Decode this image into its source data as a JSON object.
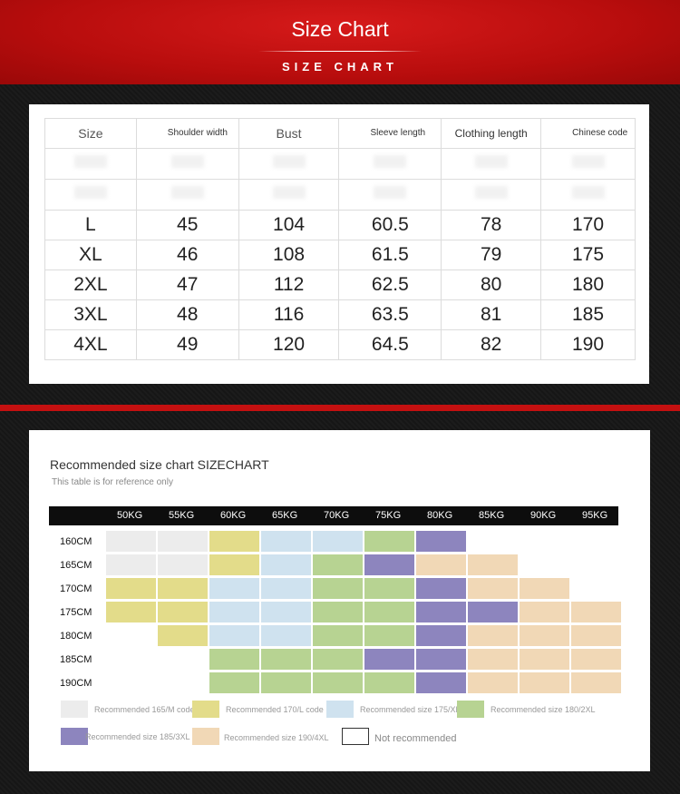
{
  "header": {
    "title": "Size Chart",
    "subtitle": "SIZE CHART"
  },
  "size_table": {
    "headers": [
      "Size",
      "Shoulder width",
      "Bust",
      "Sleeve length",
      "Clothing length",
      "Chinese code"
    ],
    "rows": [
      [
        "L",
        "45",
        "104",
        "60.5",
        "78",
        "170"
      ],
      [
        "XL",
        "46",
        "108",
        "61.5",
        "79",
        "175"
      ],
      [
        "2XL",
        "47",
        "112",
        "62.5",
        "80",
        "180"
      ],
      [
        "3XL",
        "48",
        "116",
        "63.5",
        "81",
        "185"
      ],
      [
        "4XL",
        "49",
        "120",
        "64.5",
        "82",
        "190"
      ]
    ]
  },
  "recommend": {
    "title": "Recommended size chart SIZECHART",
    "subtitle": "This table is for reference only",
    "weights": [
      "50KG",
      "55KG",
      "60KG",
      "65KG",
      "70KG",
      "75KG",
      "80KG",
      "85KG",
      "90KG",
      "95KG"
    ],
    "heights": [
      "160CM",
      "165CM",
      "170CM",
      "175CM",
      "180CM",
      "185CM",
      "190CM"
    ],
    "grid": [
      [
        "M",
        "M",
        "L",
        "XL",
        "XL",
        "2XL",
        "3XL",
        "",
        "",
        ""
      ],
      [
        "M",
        "M",
        "L",
        "XL",
        "2XL",
        "3XL",
        "4XL",
        "4XL",
        "",
        ""
      ],
      [
        "L",
        "L",
        "XL",
        "XL",
        "2XL",
        "2XL",
        "3XL",
        "4XL",
        "4XL",
        ""
      ],
      [
        "L",
        "L",
        "XL",
        "XL",
        "2XL",
        "2XL",
        "3XL",
        "3XL",
        "4XL",
        "4XL"
      ],
      [
        "",
        "L",
        "XL",
        "XL",
        "2XL",
        "2XL",
        "3XL",
        "4XL",
        "4XL",
        "4XL"
      ],
      [
        "",
        "",
        "2XL",
        "2XL",
        "2XL",
        "3XL",
        "3XL",
        "4XL",
        "4XL",
        "4XL"
      ],
      [
        "",
        "",
        "2XL",
        "2XL",
        "2XL",
        "2XL",
        "3XL",
        "4XL",
        "4XL",
        "4XL"
      ]
    ],
    "colors": {
      "M": "#ececec",
      "L": "#e3dc8a",
      "XL": "#cfe2ef",
      "2XL": "#b7d392",
      "3XL": "#8d85be",
      "4XL": "#f1d8b6",
      "none": "#ffffff"
    },
    "legend": [
      {
        "key": "M",
        "label": "Recommended 165/M code"
      },
      {
        "key": "L",
        "label": "Recommended 170/L code"
      },
      {
        "key": "XL",
        "label": "Recommended size 175/XL"
      },
      {
        "key": "2XL",
        "label": "Recommended size 180/2XL"
      },
      {
        "key": "3XL",
        "label": "Recommended size 185/3XL"
      },
      {
        "key": "4XL",
        "label": "Recommended size 190/4XL"
      },
      {
        "key": "none",
        "label": "Not recommended"
      }
    ]
  }
}
